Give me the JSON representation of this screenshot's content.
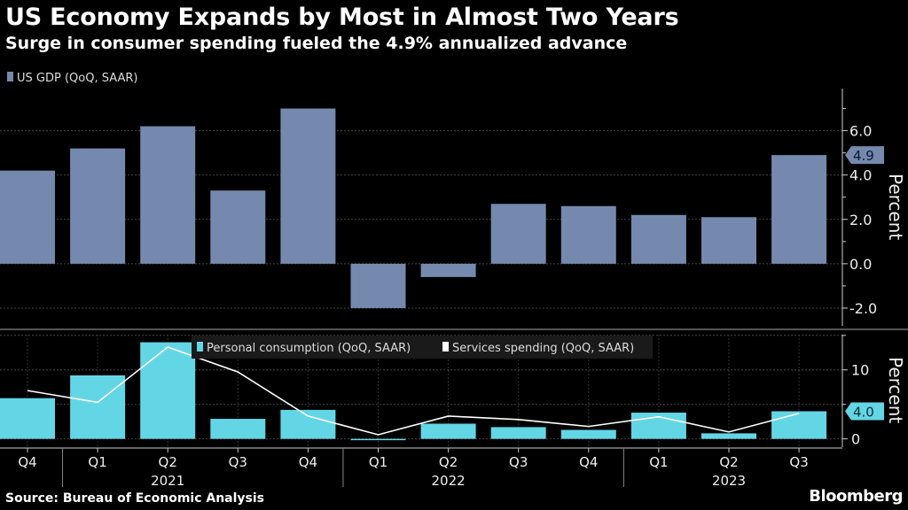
{
  "title": "US Economy Expands by Most in Almost Two Years",
  "subtitle": "Surge in consumer spending fueled the 4.9% annualized advance",
  "source": "Source: Bureau of Economic Analysis",
  "logo": "Bloomberg",
  "colors": {
    "gdp": "#7489ad",
    "consumption": "#63d6e6",
    "services": "#ffffff",
    "background": "#000000"
  },
  "x_labels": [
    "Q4",
    "Q1",
    "Q2",
    "Q3",
    "Q4",
    "Q1",
    "Q2",
    "Q3",
    "Q4",
    "Q1",
    "Q2",
    "Q3"
  ],
  "year_labels": [
    {
      "label": "2021",
      "under": 2
    },
    {
      "label": "2022",
      "under": 6
    },
    {
      "label": "2023",
      "under": 10
    }
  ],
  "chart_data": [
    {
      "type": "bar",
      "categories": [
        "Q4 2020",
        "Q1 2021",
        "Q2 2021",
        "Q3 2021",
        "Q4 2021",
        "Q1 2022",
        "Q2 2022",
        "Q3 2022",
        "Q4 2022",
        "Q1 2023",
        "Q2 2023",
        "Q3 2023"
      ],
      "series": [
        {
          "name": "US GDP (QoQ, SAAR)",
          "values": [
            4.2,
            5.2,
            6.2,
            3.3,
            7.0,
            -2.0,
            -0.6,
            2.7,
            2.6,
            2.2,
            2.1,
            4.9
          ]
        }
      ],
      "ylabel": "Percent",
      "ylim": [
        -2.8,
        7.9
      ],
      "yticks": [
        "-2.0",
        "0.0",
        "2.0",
        "4.0",
        "6.0"
      ],
      "last_value_label": "4.9",
      "grid": true,
      "legend": "top-left"
    },
    {
      "type": "bar+line",
      "categories": [
        "Q4 2020",
        "Q1 2021",
        "Q2 2021",
        "Q3 2021",
        "Q4 2021",
        "Q1 2022",
        "Q2 2022",
        "Q3 2022",
        "Q4 2022",
        "Q1 2023",
        "Q2 2023",
        "Q3 2023"
      ],
      "series": [
        {
          "name": "Personal consumption (QoQ, SAAR)",
          "type": "bar",
          "values": [
            5.9,
            9.2,
            14.0,
            2.9,
            4.2,
            0.0,
            2.2,
            1.7,
            1.3,
            3.8,
            0.8,
            4.0
          ]
        },
        {
          "name": "Services spending (QoQ, SAAR)",
          "type": "line",
          "values": [
            7.0,
            5.3,
            13.3,
            9.7,
            3.3,
            0.6,
            3.3,
            2.8,
            1.8,
            3.2,
            1.0,
            3.7
          ]
        }
      ],
      "ylabel": "Percent",
      "ylim": [
        -1.2,
        15.1
      ],
      "yticks": [
        "0",
        "10"
      ],
      "last_value_label": "4.0",
      "grid": true,
      "legend": "top-center"
    }
  ]
}
